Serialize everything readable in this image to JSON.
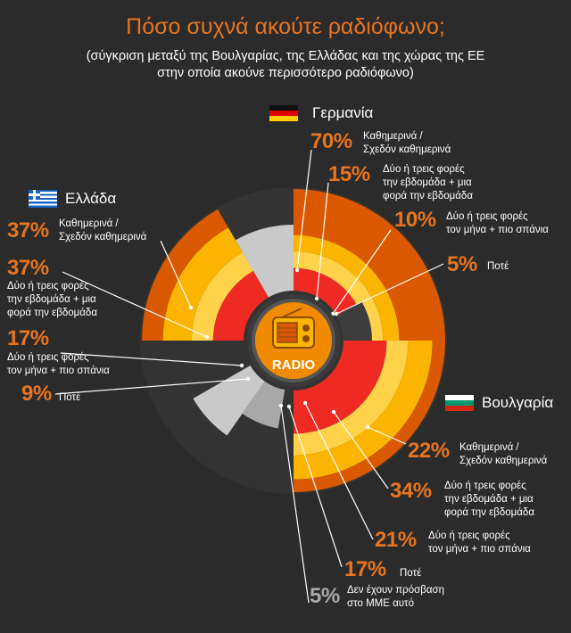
{
  "title": "Πόσο συχνά ακούτε ραδιόφωνο;",
  "subtitle_line1": "(σύγκριση μεταξύ της Βουλγαρίας, της Ελλάδας και της χώρας της ΕΕ",
  "subtitle_line2": "στην οποία ακούνε περισσότερο ραδιόφωνο)",
  "center_label": "RADIO",
  "colors": {
    "background": "#2b2b2b",
    "accent": "#e8741e",
    "ring_outer": "#d95800",
    "ring_2": "#f08a00",
    "ring_3": "#fbb400",
    "ring_4": "#ffd24a",
    "ring_inner": "#ee2a22",
    "never_gray": "#c9c9c9",
    "no_access_gray": "#a8a8a8"
  },
  "chart_data": [
    {
      "type": "radial-bar",
      "country": "Γερμανία",
      "flag": "germany-flag",
      "categories": [
        "Καθημερινά / Σχεδόν καθημερινά",
        "Δύο ή τρεις φορές την εβδομάδα + μια φορά την εβδομάδα",
        "Δύο ή τρεις φορές τον μήνα + πιο σπάνια",
        "Ποτέ"
      ],
      "values": [
        70,
        15,
        10,
        5
      ]
    },
    {
      "type": "radial-bar",
      "country": "Ελλάδα",
      "flag": "greece-flag",
      "categories": [
        "Καθημερινά / Σχεδόν καθημερινά",
        "Δύο ή τρεις φορές την εβδομάδα + μια φορά την εβδομάδα",
        "Δύο ή τρεις φορές τον μήνα + πιο σπάνια",
        "Ποτέ"
      ],
      "values": [
        37,
        37,
        17,
        9
      ]
    },
    {
      "type": "radial-bar",
      "country": "Βουλγαρία",
      "flag": "bulgaria-flag",
      "categories": [
        "Καθημερινά / Σχεδόν καθημερινά",
        "Δύο ή τρεις φορές την εβδομάδα + μια φορά την εβδομάδα",
        "Δύο ή τρεις φορές τον μήνα + πιο σπάνια",
        "Ποτέ",
        "Δεν έχουν πρόσβαση στο ΜΜΕ αυτό"
      ],
      "values": [
        22,
        34,
        21,
        17,
        5
      ]
    }
  ],
  "labels": {
    "de": [
      {
        "pct": "70%",
        "lines": [
          "Καθημερινά /",
          "Σχεδόν καθημερινά"
        ]
      },
      {
        "pct": "15%",
        "lines": [
          "Δύο ή τρεις φορές",
          "την εβδομάδα + μια",
          "φορά την εβδομάδα"
        ]
      },
      {
        "pct": "10%",
        "lines": [
          "Δύο ή τρεις φορές",
          "τον μήνα + πιο σπάνια"
        ]
      },
      {
        "pct": "5%",
        "lines": [
          "Ποτέ"
        ]
      }
    ],
    "gr": [
      {
        "pct": "37%",
        "lines": [
          "Καθημερινά /",
          "Σχεδόν καθημερινά"
        ]
      },
      {
        "pct": "37%",
        "lines": [
          "Δύο ή τρεις φορές",
          "την εβδομάδα + μια",
          "φορά την εβδομάδα"
        ]
      },
      {
        "pct": "17%",
        "lines": [
          "Δύο ή τρεις φορές",
          "τον μήνα + πιο σπάνια"
        ]
      },
      {
        "pct": "9%",
        "lines": [
          "Ποτέ"
        ]
      }
    ],
    "bg": [
      {
        "pct": "22%",
        "lines": [
          "Καθημερινά /",
          "Σχεδόν καθημερινά"
        ]
      },
      {
        "pct": "34%",
        "lines": [
          "Δύο ή τρεις φορές",
          "την εβδομάδα + μια",
          "φορά την εβδομάδα"
        ]
      },
      {
        "pct": "21%",
        "lines": [
          "Δύο ή τρεις φορές",
          "τον μήνα + πιο σπάνια"
        ]
      },
      {
        "pct": "17%",
        "lines": [
          "Ποτέ"
        ]
      },
      {
        "pct": "5%",
        "lines": [
          "Δεν έχουν πρόσβαση",
          "στο ΜΜΕ αυτό"
        ]
      }
    ]
  }
}
